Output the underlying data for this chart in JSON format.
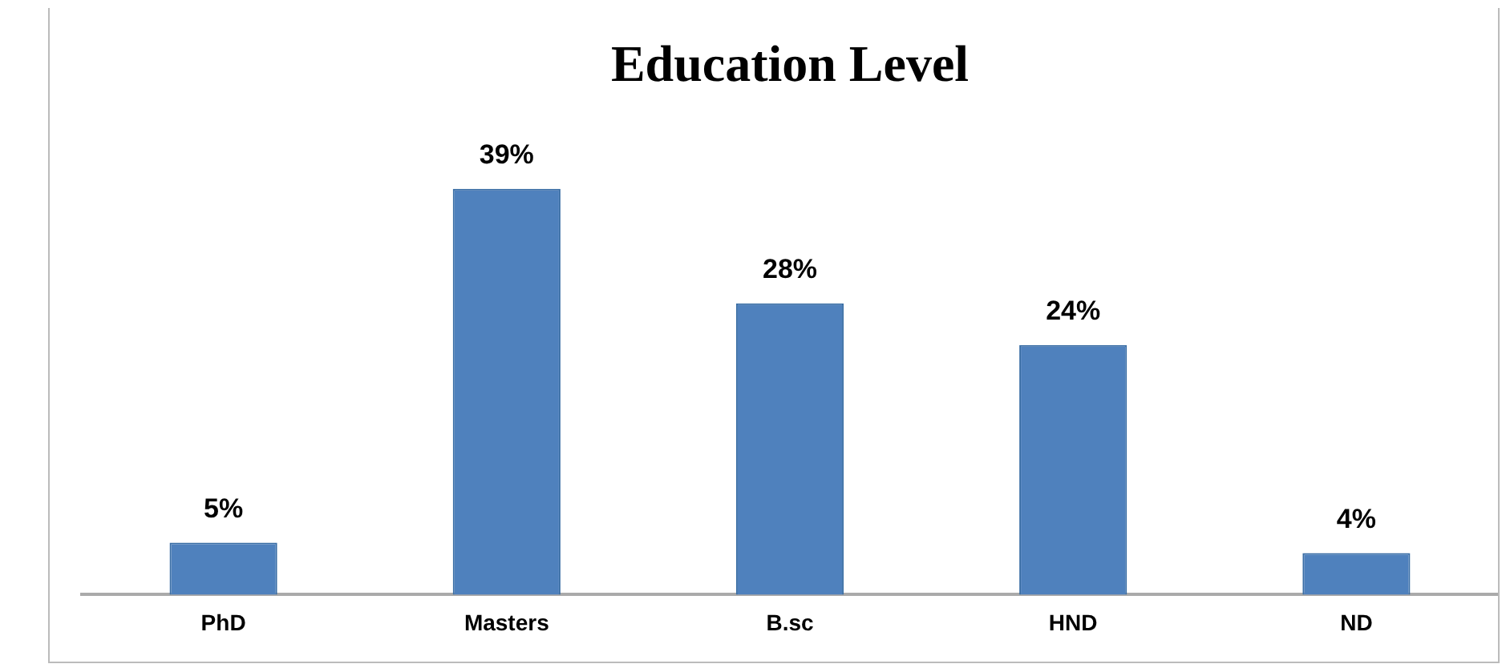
{
  "chart_data": {
    "type": "bar",
    "title": "Education Level",
    "categories": [
      "PhD",
      "Masters",
      "B.sc",
      "HND",
      "ND"
    ],
    "values": [
      5,
      39,
      28,
      24,
      4
    ],
    "value_labels": [
      "5%",
      "39%",
      "28%",
      "24%",
      "4%"
    ],
    "color": "#4f81bd",
    "grid": false,
    "legend": false
  }
}
